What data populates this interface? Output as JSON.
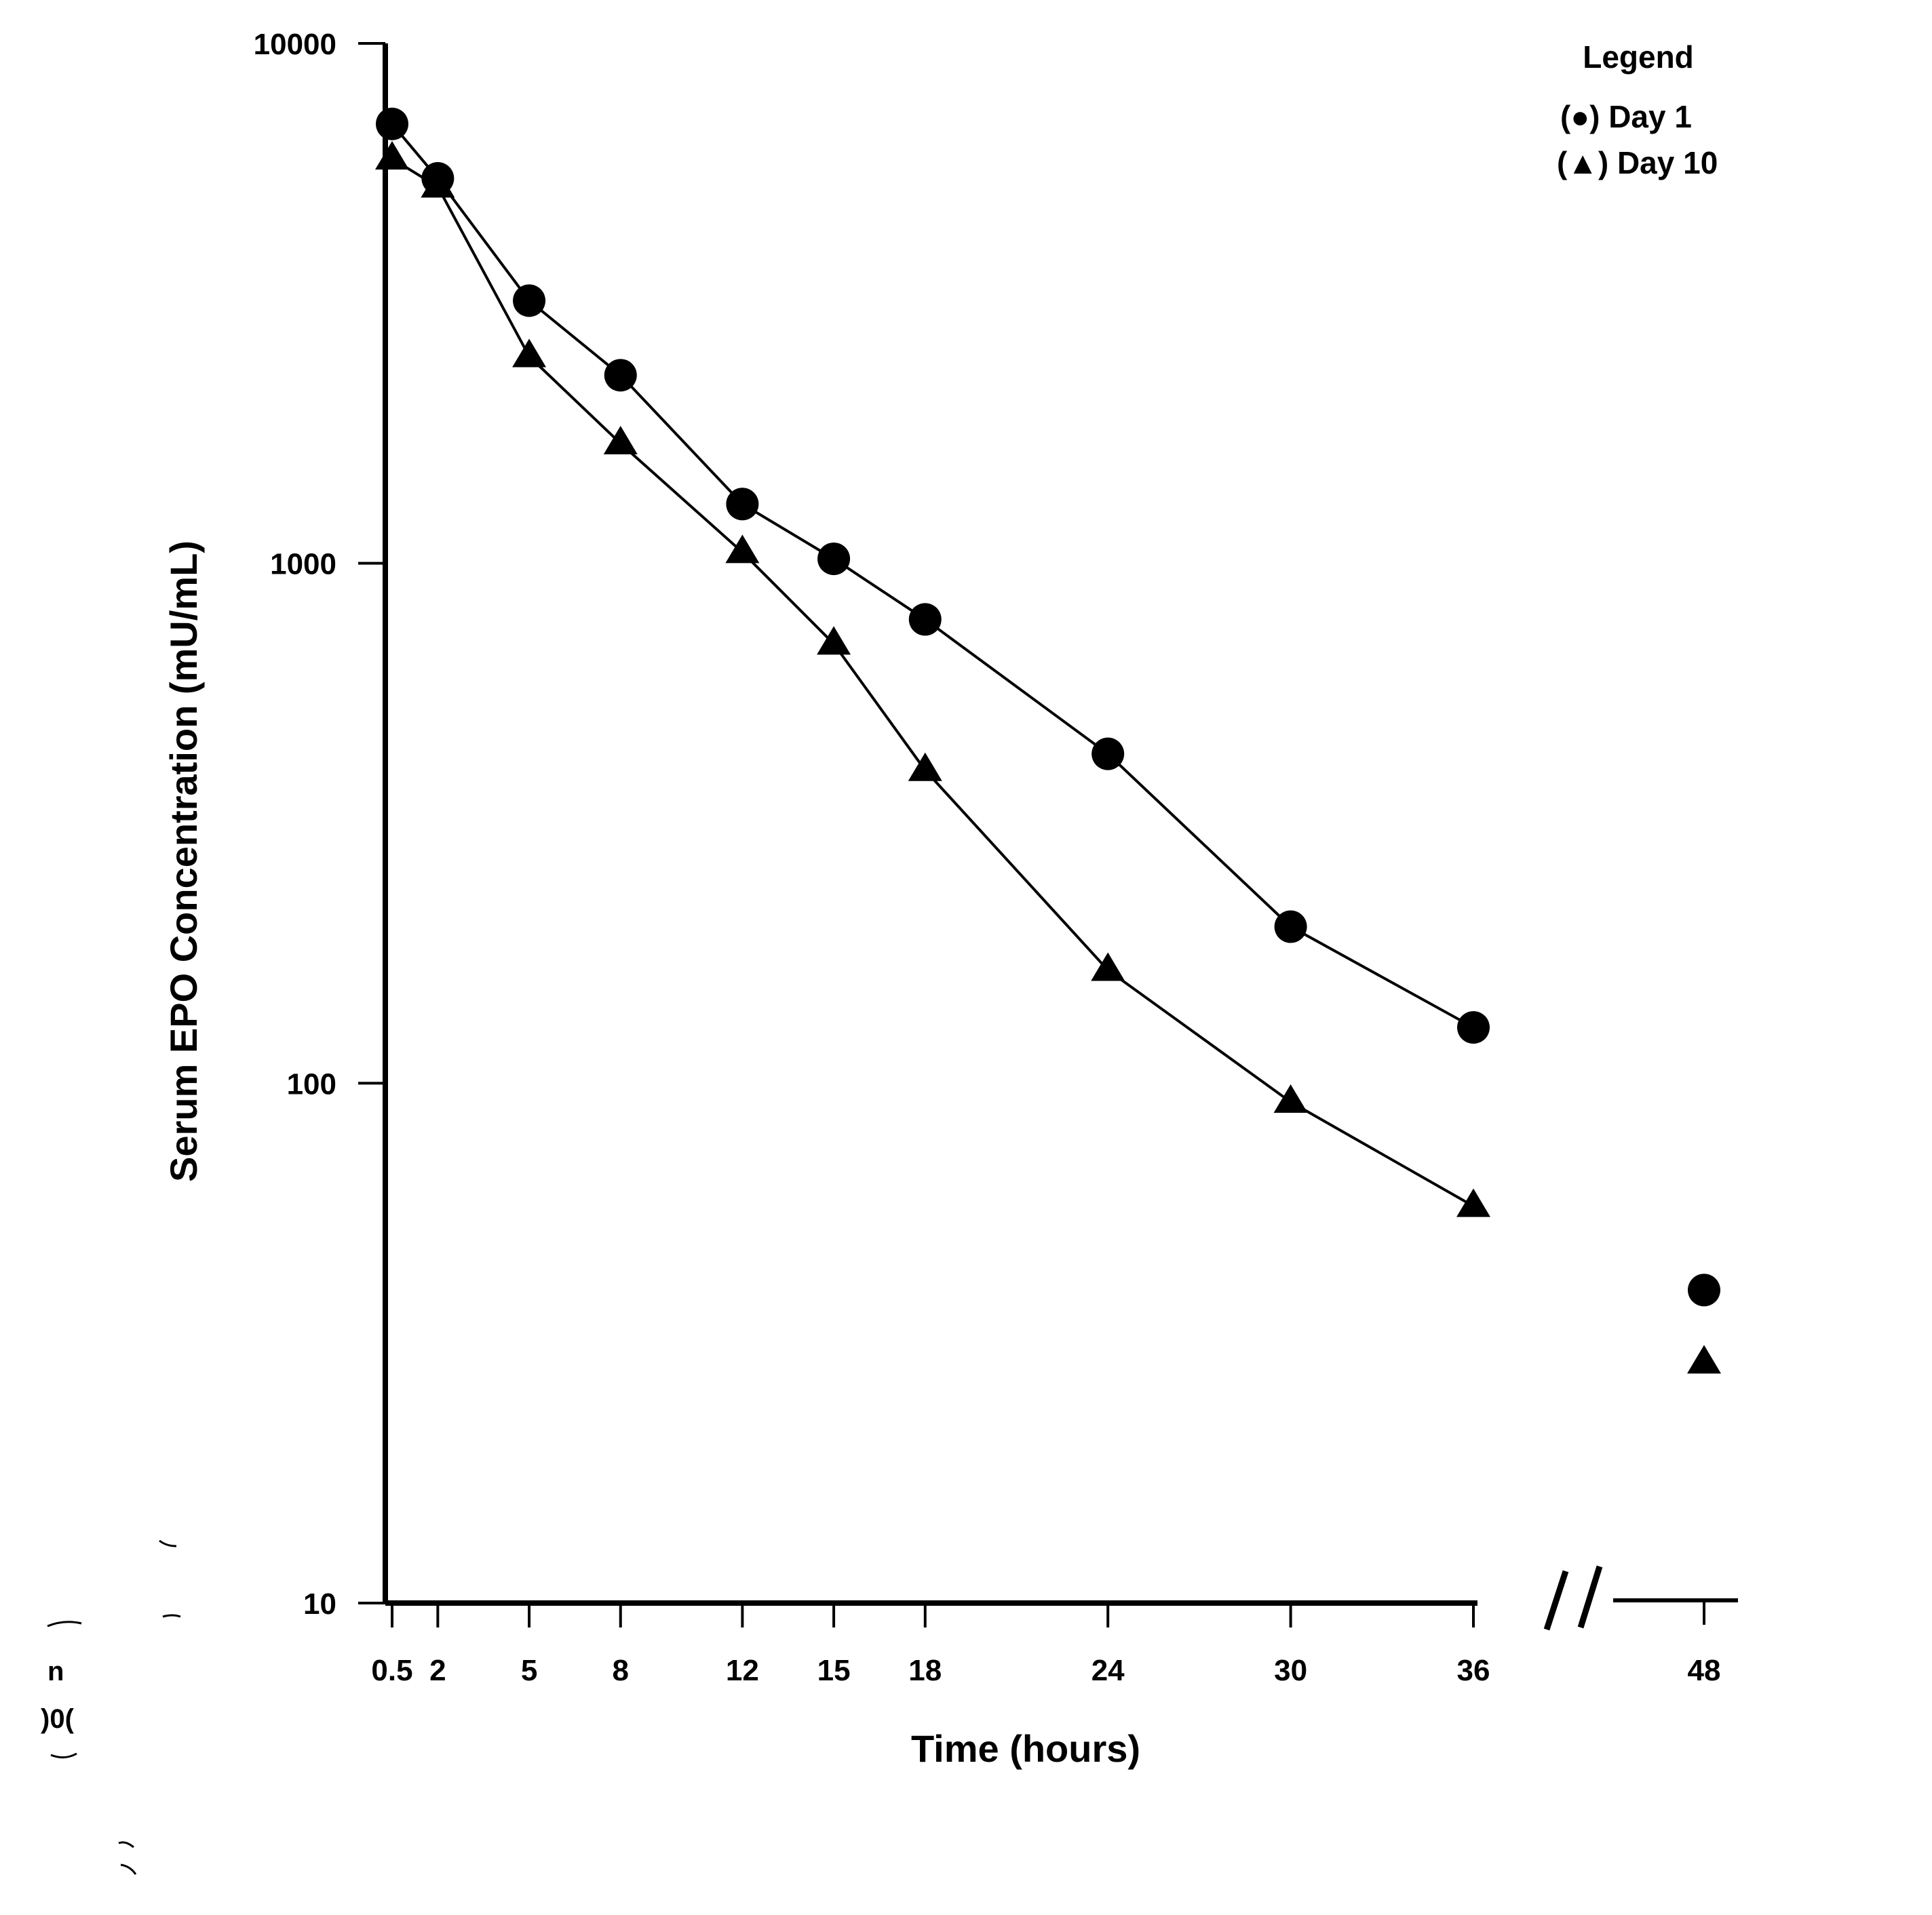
{
  "chart_data": {
    "type": "line",
    "title": "",
    "xlabel": "Time (hours)",
    "ylabel": "Serum EPO Concentration (mU/mL)",
    "yscale": "log",
    "ylim": [
      10,
      10000
    ],
    "y_ticks": [
      10,
      100,
      1000,
      10000
    ],
    "y_tick_labels": [
      "10",
      "100",
      "1000",
      "10000"
    ],
    "x_ticks": [
      0.5,
      2,
      5,
      8,
      12,
      15,
      18,
      24,
      30,
      36,
      48
    ],
    "x_tick_labels": [
      "0.5",
      "2",
      "5",
      "8",
      "12",
      "15",
      "18",
      "24",
      "30",
      "36",
      "48"
    ],
    "axis_break": "//",
    "grid": false,
    "legend": {
      "title": "Legend",
      "position": "top-right",
      "entries": [
        {
          "marker": "circle",
          "label": "(●) Day 1"
        },
        {
          "marker": "triangle",
          "label": "(▲) Day 10"
        }
      ]
    },
    "series": [
      {
        "name": "Day 1",
        "marker": "circle",
        "x": [
          0.5,
          2,
          5,
          8,
          12,
          15,
          18,
          24,
          30,
          36,
          48
        ],
        "values": [
          7000,
          5500,
          3200,
          2300,
          1300,
          1020,
          780,
          430,
          200,
          128,
          40
        ],
        "connected_through": 36
      },
      {
        "name": "Day 10",
        "marker": "triangle",
        "x": [
          0.5,
          2,
          5,
          8,
          12,
          15,
          18,
          24,
          30,
          36,
          48
        ],
        "values": [
          6000,
          5300,
          2500,
          1700,
          1050,
          700,
          400,
          165,
          92,
          58,
          29
        ],
        "connected_through": 36
      }
    ]
  },
  "scan_artifact_text": "n\n)0("
}
